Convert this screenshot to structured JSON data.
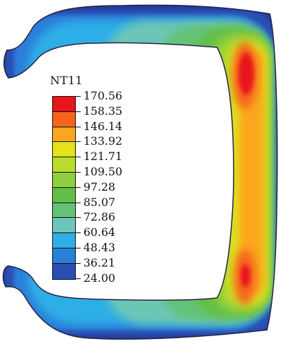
{
  "legend": {
    "title": "NT11",
    "values": [
      "170.56",
      "158.35",
      "146.14",
      "133.92",
      "121.71",
      "109.50",
      "97.28",
      "85.07",
      "72.86",
      "60.64",
      "48.43",
      "36.21",
      "24.00"
    ],
    "colors": [
      "#e8151b",
      "#f4641f",
      "#fba61d",
      "#e5e11c",
      "#b8dc2a",
      "#8fce3c",
      "#63be47",
      "#64c278",
      "#6cc6b5",
      "#2faee7",
      "#2a7fd9",
      "#2a4fb4",
      "#233b9a"
    ]
  },
  "chart_data": {
    "type": "heatmap",
    "title": "NT11",
    "scale": {
      "min": 24.0,
      "max": 170.56,
      "ticks": [
        170.56,
        158.35,
        146.14,
        133.92,
        121.71,
        109.5,
        97.28,
        85.07,
        72.86,
        60.64,
        48.43,
        36.21,
        24.0
      ]
    }
  }
}
